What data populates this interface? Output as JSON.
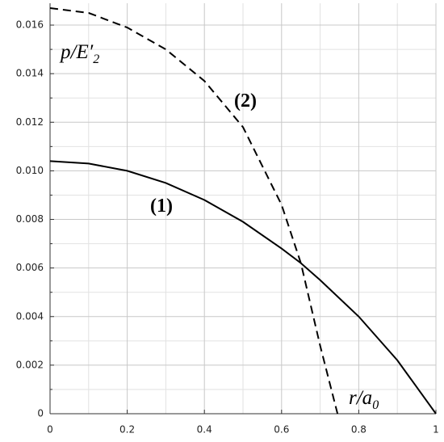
{
  "chart_data": {
    "type": "line",
    "y_label_parts": [
      "p/E′",
      "2"
    ],
    "x_label_parts": [
      "r/a",
      "0"
    ],
    "series": [
      {
        "name": "(1)",
        "color": "#000000",
        "dash": "solid",
        "x": [
          0,
          0.1,
          0.2,
          0.3,
          0.4,
          0.5,
          0.6,
          0.65,
          0.7,
          0.8,
          0.9,
          1.0
        ],
        "values": [
          0.0104,
          0.0103,
          0.01,
          0.0095,
          0.0088,
          0.0079,
          0.0068,
          0.0062,
          0.0055,
          0.004,
          0.0022,
          0
        ]
      },
      {
        "name": "(2)",
        "color": "#000000",
        "dash": "dashed",
        "x": [
          0,
          0.1,
          0.2,
          0.3,
          0.4,
          0.5,
          0.6,
          0.65,
          0.7,
          0.745
        ],
        "values": [
          0.0167,
          0.0165,
          0.0159,
          0.015,
          0.0137,
          0.0118,
          0.0086,
          0.0062,
          0.0028,
          0
        ]
      }
    ],
    "label_positions": "inline",
    "xlim": [
      0,
      1
    ],
    "xticks": [
      0,
      0.2,
      0.4,
      0.6,
      0.8,
      1
    ],
    "ylim": [
      0,
      0.0169
    ],
    "yticks": [
      0,
      0.002,
      0.004,
      0.006,
      0.008,
      {
        "value": 0.01,
        "label": "0.010"
      },
      0.012,
      0.014,
      0.016
    ],
    "grid": true,
    "minor_grid": true
  }
}
